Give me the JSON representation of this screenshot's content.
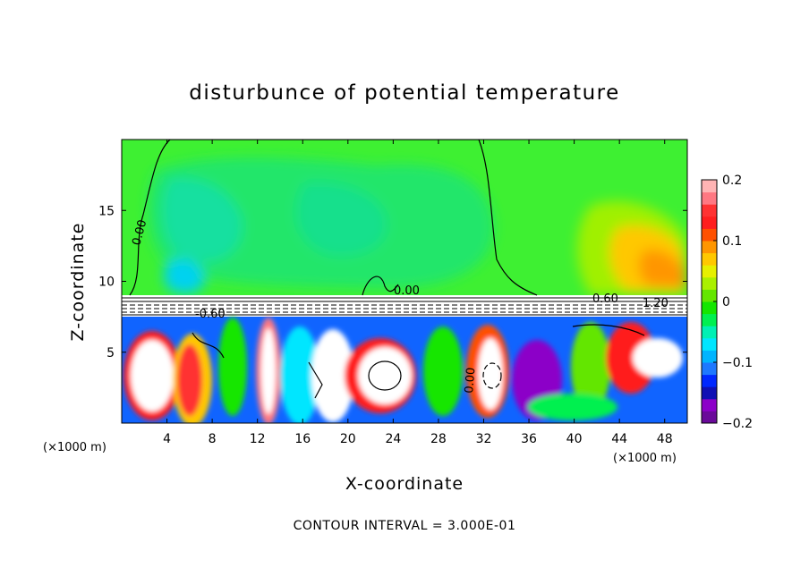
{
  "chart_data": {
    "type": "heatmap",
    "title": "disturbunce of potential temperature",
    "xlabel": "X-coordinate",
    "ylabel": "Z-coordinate",
    "x_unit_left": "(×1000 m)",
    "x_unit_right": "(×1000 m)",
    "xlim": [
      0,
      50
    ],
    "ylim": [
      0,
      20
    ],
    "x_ticks": [
      4,
      8,
      12,
      16,
      20,
      24,
      28,
      32,
      36,
      40,
      44,
      48
    ],
    "x_tick_labels": [
      "4",
      "8",
      "12",
      "16",
      "20",
      "24",
      "28",
      "32",
      "36",
      "40",
      "44",
      "48"
    ],
    "y_ticks": [
      5,
      10,
      15
    ],
    "y_tick_labels": [
      "5",
      "10",
      "15"
    ],
    "colorbar": {
      "range": [
        -0.2,
        0.2
      ],
      "ticks": [
        0.2,
        0.1,
        0,
        -0.1,
        -0.2
      ],
      "tick_labels": [
        "0.2",
        "0.1",
        "0",
        "−0.1",
        "−0.2"
      ],
      "colors": [
        "#6a0a9a",
        "#8c00c8",
        "#1010b4",
        "#0028ff",
        "#1e78ff",
        "#00b4ff",
        "#00e6ff",
        "#00f0b4",
        "#00f050",
        "#14e600",
        "#64e600",
        "#aaf000",
        "#e6f000",
        "#ffc800",
        "#ff9600",
        "#ff5000",
        "#ff1e1e",
        "#ff3232",
        "#ff7882",
        "#ffb4b4"
      ]
    },
    "contour_interval": "CONTOUR INTERVAL = 3.000E-01",
    "contour_labels": [
      "0.00",
      "0.00",
      "0.00",
      "-0.60",
      "0.60",
      "1.20"
    ]
  }
}
